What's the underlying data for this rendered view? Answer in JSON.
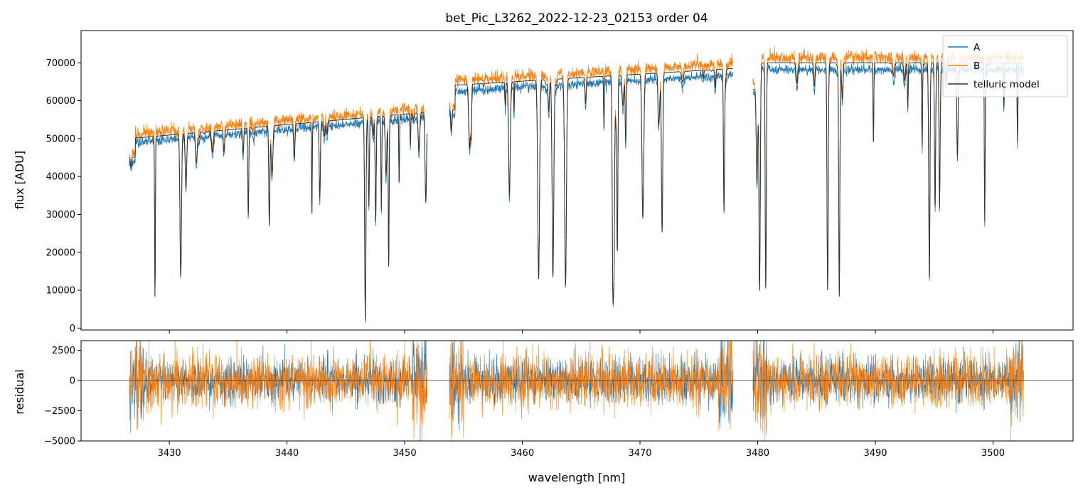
{
  "chart_data": [
    {
      "type": "line",
      "panel": "top",
      "title": "bet_Pic_L3262_2022-12-23_02153  order 04",
      "xlabel": "",
      "ylabel": "flux [ADU]",
      "xlim": [
        3422.5,
        3506.8
      ],
      "ylim": [
        -500,
        78500
      ],
      "x_ticks": [
        3430,
        3440,
        3450,
        3460,
        3470,
        3480,
        3490,
        3500
      ],
      "y_ticks": [
        0,
        10000,
        20000,
        30000,
        40000,
        50000,
        60000,
        70000
      ],
      "y_tick_labels": [
        "0",
        "10000",
        "20000",
        "30000",
        "40000",
        "50000",
        "60000",
        "70000"
      ],
      "legend": {
        "placement": "top-right",
        "entries": [
          {
            "label": "A",
            "color": "#1f77b4"
          },
          {
            "label": "B",
            "color": "#ff7f0e"
          },
          {
            "label": "telluric model",
            "color": "#333333"
          }
        ]
      },
      "segments": [
        {
          "x_start": 3426.6,
          "x_end": 3451.9,
          "continuum_start": 50000,
          "continuum_end": 57000
        },
        {
          "x_start": 3453.8,
          "x_end": 3477.9,
          "continuum_start": 64000,
          "continuum_end": 68500
        },
        {
          "x_start": 3479.6,
          "x_end": 3502.6,
          "continuum_start": 70000,
          "continuum_end": 70000
        }
      ],
      "series": [
        {
          "name": "A",
          "color": "#1f77b4"
        },
        {
          "name": "B",
          "color": "#ff7f0e"
        },
        {
          "name": "telluric model",
          "color": "#333333"
        }
      ]
    },
    {
      "type": "line",
      "panel": "bottom",
      "xlabel": "wavelength [nm]",
      "ylabel": "residual",
      "xlim": [
        3422.5,
        3506.8
      ],
      "ylim": [
        -5000,
        3300
      ],
      "x_ticks": [
        3430,
        3440,
        3450,
        3460,
        3470,
        3480,
        3490,
        3500
      ],
      "x_tick_labels": [
        "3430",
        "3440",
        "3450",
        "3460",
        "3470",
        "3480",
        "3490",
        "3500"
      ],
      "y_ticks": [
        2500,
        0,
        -2500,
        -5000
      ],
      "y_tick_labels": [
        "2500",
        "0",
        "−2500",
        "−5000"
      ],
      "zero_line": 0,
      "series": [
        {
          "name": "A",
          "color": "#1f77b4"
        },
        {
          "name": "B",
          "color": "#ff7f0e"
        }
      ]
    }
  ]
}
